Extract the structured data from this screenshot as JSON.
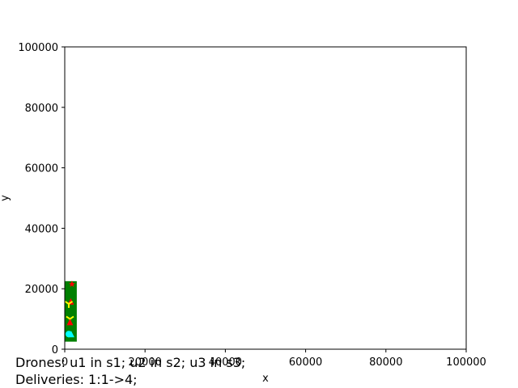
{
  "chart_data": {
    "type": "scatter",
    "xlabel": "x",
    "ylabel": "y",
    "xlim": [
      0,
      100000
    ],
    "ylim": [
      0,
      100000
    ],
    "x_ticks": [
      "0",
      "20000",
      "40000",
      "60000",
      "80000",
      "100000"
    ],
    "y_ticks": [
      "0",
      "20000",
      "40000",
      "60000",
      "80000",
      "100000"
    ],
    "grid": false,
    "zone": {
      "x": [
        0,
        3000
      ],
      "y": [
        2500,
        22500
      ],
      "color": "#008000"
    },
    "points": [
      {
        "x": 1800,
        "y": 21600,
        "marker": "star",
        "color": "#ff0000"
      },
      {
        "x": 1500,
        "y": 15800,
        "marker": "triangle",
        "color": "#ff0000"
      },
      {
        "x": 1000,
        "y": 15000,
        "marker": "tri",
        "color": "#ffff00"
      },
      {
        "x": 1300,
        "y": 10000,
        "marker": "tri",
        "color": "#ffff00"
      },
      {
        "x": 1300,
        "y": 9000,
        "marker": "triangle",
        "color": "#ff0000"
      },
      {
        "x": 1000,
        "y": 5000,
        "marker": "circle",
        "color": "#00ffff"
      },
      {
        "x": 1600,
        "y": 5000,
        "marker": "triangle",
        "color": "#00ffff"
      }
    ]
  },
  "status": {
    "drones": "Drones: u1 in s1; u2 in s2; u3 in s3;",
    "deliveries": "Deliveries: 1:1->4;"
  }
}
